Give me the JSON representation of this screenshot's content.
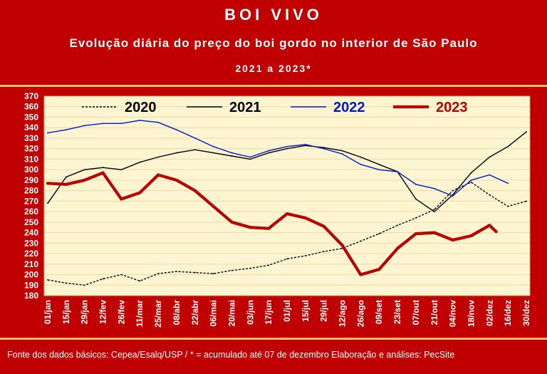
{
  "header": {
    "title": "BOI VIVO",
    "subtitle": "Evolução diária do preço do boi gordo no interior de São Paulo",
    "period": "2021 a 2023*"
  },
  "footer": {
    "source": "Fonte dos dados básicos: Cepea/Esalq/USP   /  * = acumulado até 07 de dezembro    Elaboração e análises: PecSite"
  },
  "colors": {
    "background": "#c00000",
    "plot_area": "#fdf4d2",
    "gridline": "#f0dca0",
    "accent_rule": "#f0c060",
    "series_2020": "#000000",
    "series_2021": "#000000",
    "series_2022": "#0018c8",
    "series_2023": "#b80000"
  },
  "chart_data": {
    "type": "line",
    "ylim": [
      180,
      370
    ],
    "y_ticks": [
      "370",
      "360",
      "350",
      "340",
      "330",
      "320",
      "310",
      "300",
      "290",
      "280",
      "270",
      "260",
      "250",
      "240",
      "230",
      "220",
      "210",
      "200",
      "190",
      "180"
    ],
    "x_ticks": [
      "01/jan",
      "15/jan",
      "29/jan",
      "12/fev",
      "26/fev",
      "11/mar",
      "25/mar",
      "08/abr",
      "22/abr",
      "06/mai",
      "20/mai",
      "03/jun",
      "17/jun",
      "01/jul",
      "15/jul",
      "29/jul",
      "12/ago",
      "26/ago",
      "09/set",
      "23/set",
      "07/out",
      "21/out",
      "04/nov",
      "18/nov",
      "02/dez",
      "16/dez",
      "30/dez"
    ],
    "grid": true,
    "legend_position": "top",
    "series": [
      {
        "name": "2020",
        "style": "dashed",
        "x": [
          "01/jan",
          "15/jan",
          "29/jan",
          "12/fev",
          "26/fev",
          "11/mar",
          "25/mar",
          "08/abr",
          "22/abr",
          "06/mai",
          "20/mai",
          "03/jun",
          "17/jun",
          "01/jul",
          "15/jul",
          "29/jul",
          "12/ago",
          "26/ago",
          "09/set",
          "23/set",
          "07/out",
          "21/out",
          "04/nov",
          "18/nov",
          "02/dez",
          "16/dez",
          "30/dez"
        ],
        "values": [
          195,
          192,
          190,
          196,
          200,
          194,
          201,
          203,
          202,
          201,
          204,
          206,
          209,
          215,
          218,
          222,
          225,
          232,
          239,
          247,
          254,
          262,
          280,
          288,
          276,
          265,
          270
        ]
      },
      {
        "name": "2021",
        "style": "solid",
        "x": [
          "01/jan",
          "15/jan",
          "29/jan",
          "12/fev",
          "26/fev",
          "11/mar",
          "25/mar",
          "08/abr",
          "22/abr",
          "06/mai",
          "20/mai",
          "03/jun",
          "17/jun",
          "01/jul",
          "15/jul",
          "29/jul",
          "12/ago",
          "26/ago",
          "09/set",
          "23/set",
          "07/out",
          "21/out",
          "04/nov",
          "18/nov",
          "02/dez",
          "16/dez",
          "30/dez"
        ],
        "values": [
          268,
          293,
          300,
          302,
          300,
          307,
          312,
          316,
          319,
          316,
          313,
          310,
          316,
          320,
          323,
          321,
          318,
          312,
          305,
          298,
          272,
          260,
          276,
          297,
          312,
          322,
          336
        ]
      },
      {
        "name": "2022",
        "style": "solid",
        "x": [
          "01/jan",
          "15/jan",
          "29/jan",
          "12/fev",
          "26/fev",
          "11/mar",
          "25/mar",
          "08/abr",
          "22/abr",
          "06/mai",
          "20/mai",
          "03/jun",
          "17/jun",
          "01/jul",
          "15/jul",
          "29/jul",
          "12/ago",
          "26/ago",
          "09/set",
          "23/set",
          "07/out",
          "21/out",
          "04/nov",
          "18/nov",
          "02/dez",
          "16/dez"
        ],
        "values": [
          335,
          338,
          342,
          344,
          344,
          347,
          345,
          338,
          330,
          322,
          316,
          312,
          318,
          322,
          324,
          320,
          315,
          305,
          300,
          298,
          286,
          282,
          275,
          290,
          295,
          287
        ]
      },
      {
        "name": "2023",
        "style": "thick",
        "x": [
          "01/jan",
          "15/jan",
          "29/jan",
          "12/fev",
          "26/fev",
          "11/mar",
          "25/mar",
          "08/abr",
          "22/abr",
          "06/mai",
          "20/mai",
          "03/jun",
          "17/jun",
          "01/jul",
          "15/jul",
          "29/jul",
          "12/ago",
          "26/ago",
          "09/set",
          "23/set",
          "07/out",
          "21/out",
          "04/nov",
          "18/nov",
          "02/dez",
          "07/dez"
        ],
        "values": [
          287,
          286,
          290,
          297,
          272,
          278,
          295,
          290,
          280,
          265,
          250,
          245,
          244,
          258,
          254,
          246,
          228,
          200,
          205,
          225,
          239,
          240,
          233,
          237,
          247,
          241
        ]
      }
    ]
  }
}
